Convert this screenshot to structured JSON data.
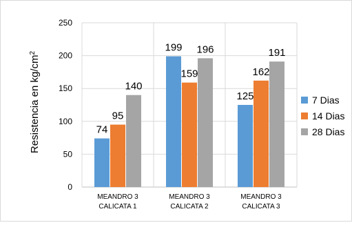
{
  "chart_data": {
    "type": "bar",
    "title": "",
    "xlabel": "",
    "ylabel": "Resistencia en kg/cm",
    "ylabel_superscript": "2",
    "ylim": [
      0,
      250
    ],
    "yticks": [
      "0",
      "50",
      "100",
      "150",
      "200",
      "250"
    ],
    "grid": true,
    "legend_position": "right",
    "categories": [
      [
        "MEANDRO 3",
        "CALICATA 1"
      ],
      [
        "MEANDRO 3",
        "CALICATA 2"
      ],
      [
        "MEANDRO 3",
        "CALICATA 3"
      ]
    ],
    "series": [
      {
        "name": "7 Dias",
        "color": "#5B9BD5",
        "values": [
          74,
          199,
          125
        ]
      },
      {
        "name": "14 Dias",
        "color": "#ED7D31",
        "values": [
          95,
          159,
          162
        ]
      },
      {
        "name": "28 Dias",
        "color": "#A5A5A5",
        "values": [
          140,
          196,
          191
        ]
      }
    ]
  }
}
